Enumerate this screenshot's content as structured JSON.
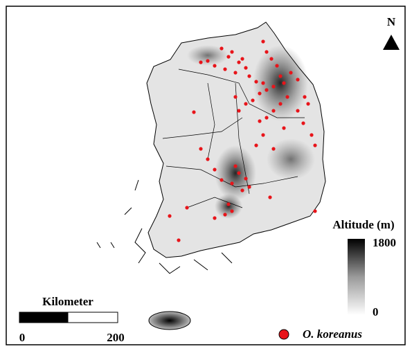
{
  "north_arrow": {
    "label": "N"
  },
  "altitude_legend": {
    "title": "Altitude (m)",
    "max": 1800,
    "min": 0
  },
  "scale_bar": {
    "title": "Kilometer",
    "ticks": [
      0,
      200
    ]
  },
  "species_legend": {
    "label": "O. koreanus"
  }
}
